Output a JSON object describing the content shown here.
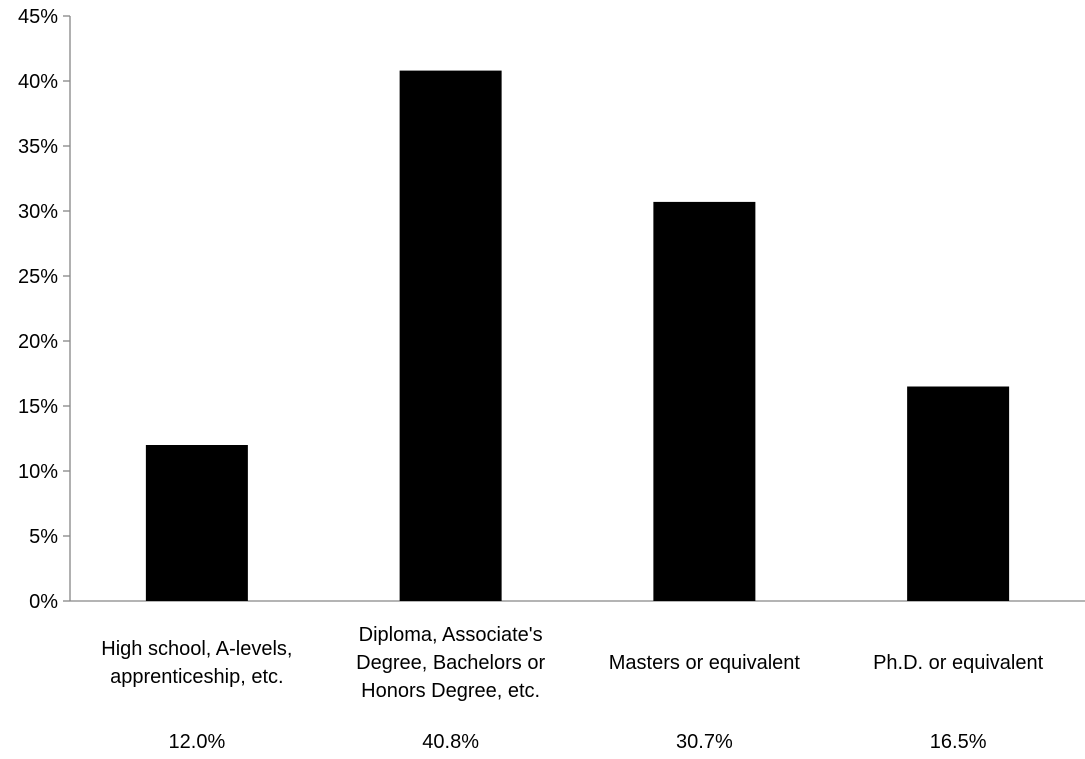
{
  "chart_data": {
    "type": "bar",
    "title": "",
    "xlabel": "",
    "ylabel": "",
    "categories": [
      "High school, A-levels, apprenticeship, etc.",
      "Diploma, Associate's Degree, Bachelors or Honors Degree, etc.",
      "Masters or equivalent",
      "Ph.D. or equivalent"
    ],
    "category_lines": [
      [
        "High school, A-levels,",
        "apprenticeship, etc."
      ],
      [
        "Diploma, Associate's",
        "Degree, Bachelors or",
        "Honors Degree, etc."
      ],
      [
        "Masters or equivalent"
      ],
      [
        "Ph.D. or equivalent"
      ]
    ],
    "values": [
      12.0,
      40.8,
      30.7,
      16.5
    ],
    "value_labels": [
      "12.0%",
      "40.8%",
      "30.7%",
      "16.5%"
    ],
    "ylim": [
      0,
      45
    ],
    "yticks": [
      0,
      5,
      10,
      15,
      20,
      25,
      30,
      35,
      40,
      45
    ],
    "ytick_labels": [
      "0%",
      "5%",
      "10%",
      "15%",
      "20%",
      "25%",
      "30%",
      "35%",
      "40%",
      "45%"
    ],
    "grid": false,
    "legend": "none",
    "bar_color": "#000000",
    "axis_color": "#868686"
  }
}
